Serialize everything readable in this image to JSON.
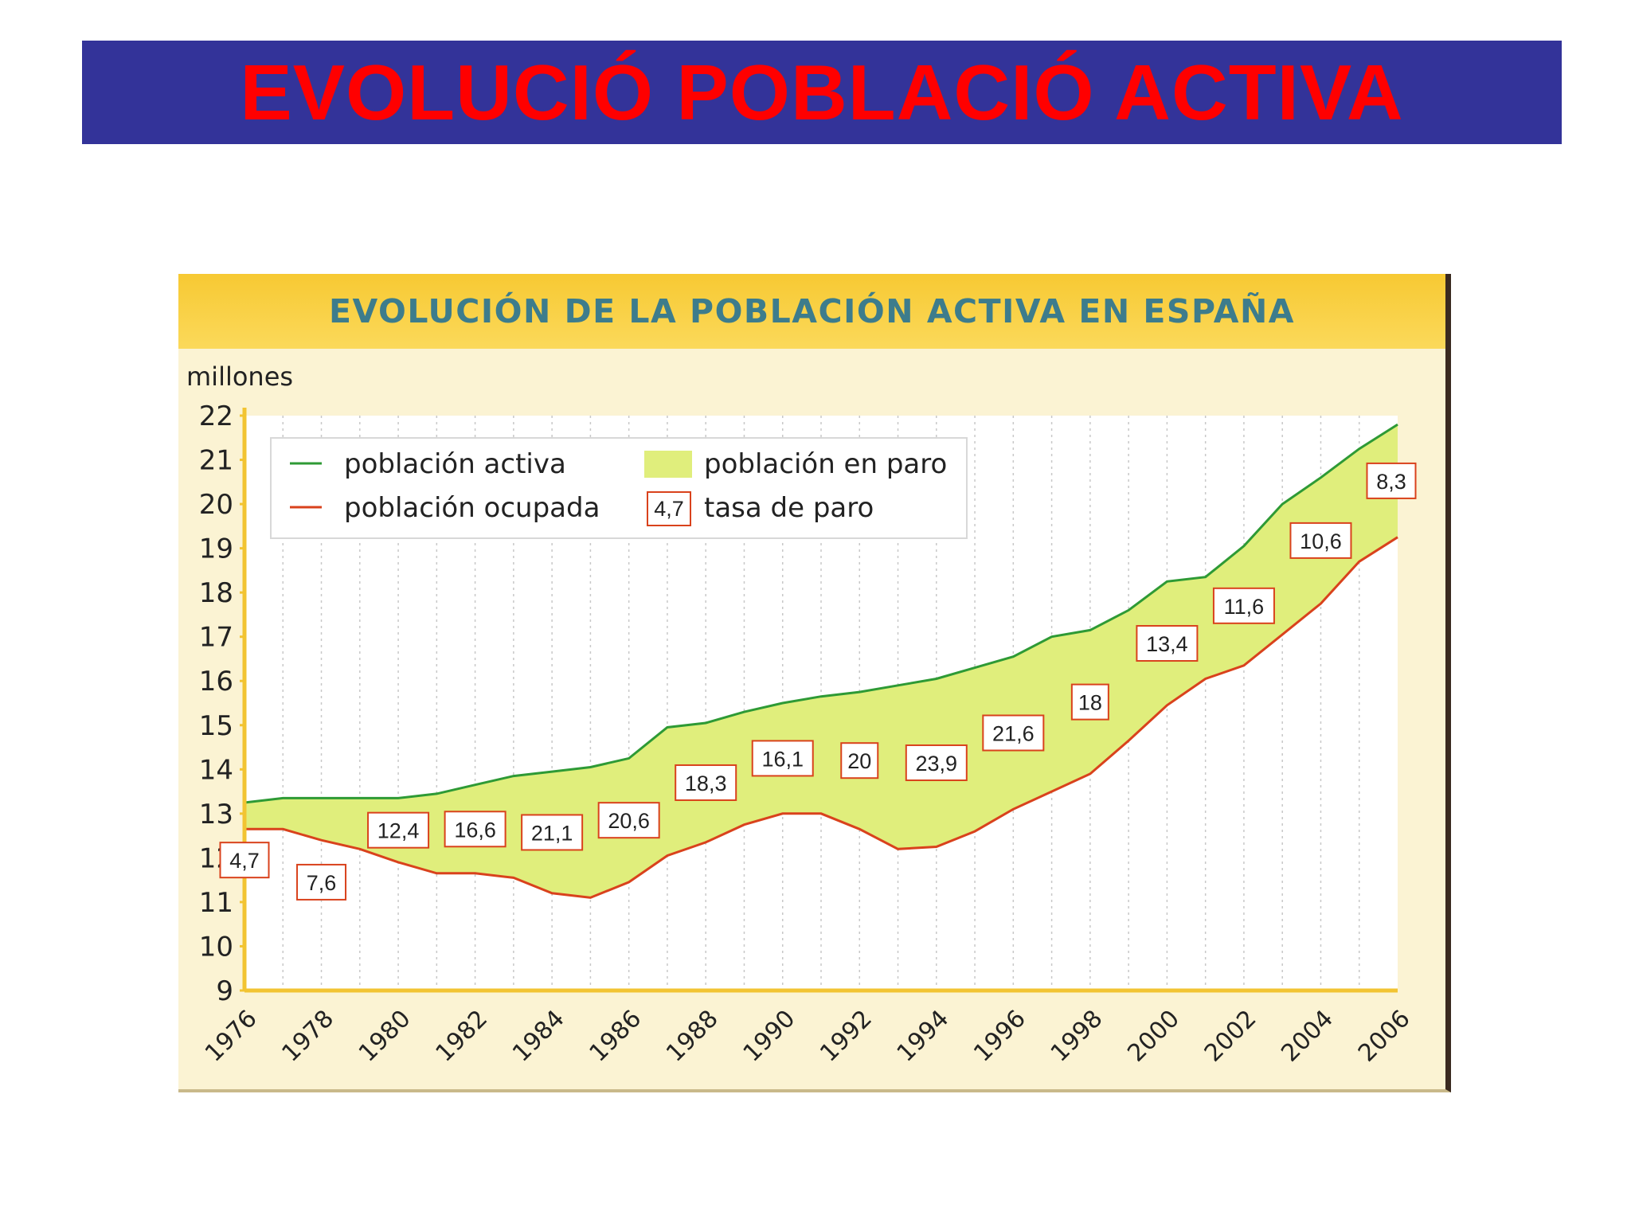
{
  "slide": {
    "title": "EVOLUCIÓ POBLACIÓ ACTIVA"
  },
  "colors": {
    "banner": "#333399",
    "title_text": "#ff0000",
    "chart_header": "#f7c933",
    "chart_title_text": "#3d7c8c",
    "activa_line": "#2e9a35",
    "ocupada_line": "#d9421c",
    "paro_fill": "#e0ee7c",
    "rate_box_border": "#d9421c"
  },
  "chart_data": {
    "type": "area",
    "title": "EVOLUCIÓN DE LA POBLACIÓN ACTIVA EN ESPAÑA",
    "ylabel": "millones",
    "xlabel": "",
    "ylim": [
      9,
      22
    ],
    "xlim": [
      1976,
      2006
    ],
    "y_ticks": [
      "22",
      "21",
      "20",
      "19",
      "18",
      "17",
      "16",
      "15",
      "14",
      "13",
      "12",
      "11",
      "10",
      "9"
    ],
    "x_ticks": [
      "1976",
      "1978",
      "1980",
      "1982",
      "1984",
      "1986",
      "1988",
      "1990",
      "1992",
      "1994",
      "1996",
      "1998",
      "2000",
      "2002",
      "2004",
      "2006"
    ],
    "grid": true,
    "legend_position": "top-left",
    "legend": {
      "activa": "población activa",
      "ocupada": "población ocupada",
      "paro": "población en paro",
      "tasa": "tasa de paro",
      "tasa_sample": "4,7"
    },
    "x": [
      1976,
      1977,
      1978,
      1979,
      1980,
      1981,
      1982,
      1983,
      1984,
      1985,
      1986,
      1987,
      1988,
      1989,
      1990,
      1991,
      1992,
      1993,
      1994,
      1995,
      1996,
      1997,
      1998,
      1999,
      2000,
      2001,
      2002,
      2003,
      2004,
      2005,
      2006
    ],
    "series": [
      {
        "name": "población activa",
        "values": [
          13.25,
          13.35,
          13.35,
          13.35,
          13.35,
          13.45,
          13.65,
          13.85,
          13.95,
          14.05,
          14.25,
          14.95,
          15.05,
          15.3,
          15.5,
          15.65,
          15.75,
          15.9,
          16.05,
          16.3,
          16.55,
          17.0,
          17.15,
          17.6,
          18.25,
          18.35,
          19.05,
          20.0,
          20.6,
          21.25,
          21.8
        ]
      },
      {
        "name": "población ocupada",
        "values": [
          12.65,
          12.65,
          12.4,
          12.2,
          11.9,
          11.65,
          11.65,
          11.55,
          11.2,
          11.1,
          11.45,
          12.05,
          12.35,
          12.75,
          13.0,
          13.0,
          12.65,
          12.2,
          12.25,
          12.6,
          13.1,
          13.5,
          13.9,
          14.65,
          15.45,
          16.05,
          16.35,
          17.05,
          17.75,
          18.7,
          19.25
        ]
      }
    ],
    "tasa_de_paro": [
      {
        "year": 1976,
        "label": "4,7"
      },
      {
        "year": 1978,
        "label": "7,6"
      },
      {
        "year": 1980,
        "label": "12,4"
      },
      {
        "year": 1982,
        "label": "16,6"
      },
      {
        "year": 1984,
        "label": "21,1"
      },
      {
        "year": 1986,
        "label": "20,6"
      },
      {
        "year": 1988,
        "label": "18,3"
      },
      {
        "year": 1990,
        "label": "16,1"
      },
      {
        "year": 1992,
        "label": "20"
      },
      {
        "year": 1994,
        "label": "23,9"
      },
      {
        "year": 1996,
        "label": "21,6"
      },
      {
        "year": 1998,
        "label": "18"
      },
      {
        "year": 2000,
        "label": "13,4"
      },
      {
        "year": 2002,
        "label": "11,6"
      },
      {
        "year": 2004,
        "label": "10,6"
      },
      {
        "year": 2006,
        "label": "8,3"
      }
    ]
  }
}
